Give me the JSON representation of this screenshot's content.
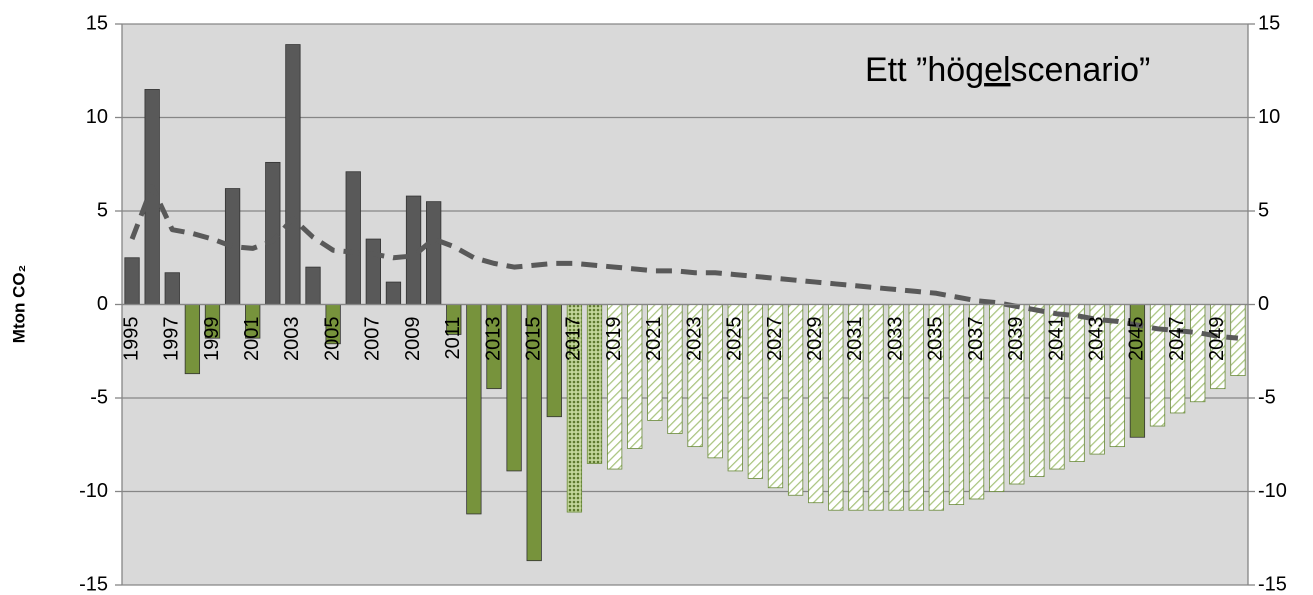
{
  "chart_data": {
    "type": "bar",
    "y_label": "Mton CO₂",
    "annotation": {
      "parts": [
        "Ett ”hög",
        "el",
        "scenario”"
      ],
      "underlined": 1
    },
    "categories": [
      "1995",
      null,
      "1997",
      null,
      "1999",
      null,
      "2001",
      null,
      "2003",
      null,
      "2005",
      null,
      "2007",
      null,
      "2009",
      null,
      "2011",
      null,
      "2013",
      null,
      "2015",
      null,
      "2017",
      null,
      "2019",
      null,
      "2021",
      null,
      "2023",
      null,
      "2025",
      null,
      "2027",
      null,
      "2029",
      null,
      "2031",
      null,
      "2033",
      null,
      "2035",
      null,
      "2037",
      null,
      "2039",
      null,
      "2041",
      null,
      "2043",
      null,
      "2045",
      null,
      "2047",
      null,
      "2049",
      null
    ],
    "series": [
      {
        "type": "bar",
        "values": [
          2.5,
          11.5,
          1.7,
          -3.7,
          -1.8,
          6.2,
          -1.8,
          7.6,
          13.9,
          2.0,
          -2.1,
          7.1,
          3.5,
          1.2,
          5.8,
          5.5,
          -1.6,
          -11.2,
          -4.5,
          -8.9,
          -13.7,
          -6.0,
          -11.1,
          -8.5,
          -8.8,
          -7.7,
          -6.2,
          -6.9,
          -7.6,
          -8.2,
          -8.9,
          -9.3,
          -9.8,
          -10.2,
          -10.6,
          -11.0,
          -11.0,
          -11.0,
          -11.0,
          -11.0,
          -11.0,
          -10.7,
          -10.4,
          -10.0,
          -9.6,
          -9.2,
          -8.8,
          -8.4,
          -8.0,
          -7.6,
          -7.1,
          -6.5,
          -5.8,
          -5.2,
          -4.5,
          -3.8
        ],
        "patterns": [
          "solid",
          "solid",
          "solid",
          "solid",
          "solid",
          "solid",
          "solid",
          "solid",
          "solid",
          "solid",
          "solid",
          "solid",
          "solid",
          "solid",
          "solid",
          "solid",
          "solid",
          "solid",
          "solid",
          "solid",
          "solid",
          "solid",
          "dotted",
          "dotted",
          "hatched",
          "hatched",
          "hatched",
          "hatched",
          "hatched",
          "hatched",
          "hatched",
          "hatched",
          "hatched",
          "hatched",
          "hatched",
          "hatched",
          "hatched",
          "hatched",
          "hatched",
          "hatched",
          "hatched",
          "hatched",
          "hatched",
          "hatched",
          "hatched",
          "hatched",
          "hatched",
          "hatched",
          "hatched",
          "hatched",
          "solid",
          "hatched",
          "hatched",
          "hatched",
          "hatched",
          "hatched"
        ],
        "positive_color": "#595959",
        "negative_color": "#77933c"
      },
      {
        "type": "line",
        "color": "#595959",
        "dashed": true,
        "values": [
          3.5,
          6.3,
          4.0,
          3.8,
          3.5,
          3.1,
          3.0,
          3.4,
          4.6,
          3.6,
          2.9,
          2.8,
          2.7,
          2.5,
          2.6,
          3.5,
          3.1,
          2.5,
          2.2,
          2.0,
          2.1,
          2.2,
          2.2,
          2.1,
          2.0,
          1.9,
          1.8,
          1.8,
          1.7,
          1.7,
          1.6,
          1.5,
          1.4,
          1.3,
          1.2,
          1.1,
          1.0,
          0.9,
          0.8,
          0.7,
          0.6,
          0.4,
          0.2,
          0.1,
          -0.1,
          -0.3,
          -0.5,
          -0.6,
          -0.8,
          -0.9,
          -1.1,
          -1.3,
          -1.4,
          -1.5,
          -1.7,
          -1.8
        ]
      }
    ],
    "ylim": [
      -15,
      15
    ],
    "yticks": [
      -15,
      -10,
      -5,
      0,
      5,
      10,
      15
    ],
    "y2lim": [
      -15,
      15
    ],
    "y2ticks": [
      -15,
      -10,
      -5,
      0,
      5,
      10,
      15
    ],
    "grid": true,
    "background": "#d9d9d9"
  }
}
